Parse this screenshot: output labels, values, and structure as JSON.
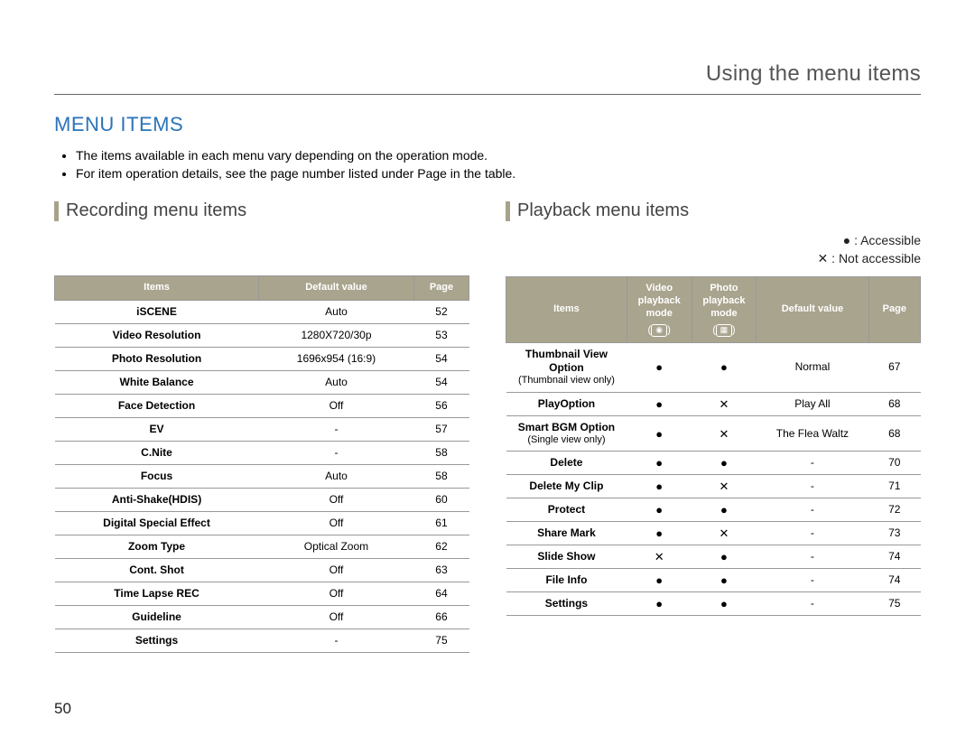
{
  "header": {
    "title": "Using the menu items"
  },
  "section": {
    "title": "MENU ITEMS"
  },
  "bullets": [
    "The items available in each menu vary depending on the operation mode.",
    "For item operation details, see the page number listed under Page in the table."
  ],
  "recording": {
    "title": "Recording menu items",
    "columns": [
      "Items",
      "Default value",
      "Page"
    ],
    "rows": [
      {
        "item": "iSCENE",
        "default": "Auto",
        "page": "52"
      },
      {
        "item": "Video Resolution",
        "default": "1280X720/30p",
        "page": "53"
      },
      {
        "item": "Photo Resolution",
        "default": "1696x954 (16:9)",
        "page": "54"
      },
      {
        "item": "White Balance",
        "default": "Auto",
        "page": "54"
      },
      {
        "item": "Face Detection",
        "default": "Off",
        "page": "56"
      },
      {
        "item": "EV",
        "default": "-",
        "page": "57"
      },
      {
        "item": "C.Nite",
        "default": "-",
        "page": "58"
      },
      {
        "item": "Focus",
        "default": "Auto",
        "page": "58"
      },
      {
        "item": "Anti-Shake(HDIS)",
        "default": "Off",
        "page": "60"
      },
      {
        "item": "Digital Special Effect",
        "default": "Off",
        "page": "61"
      },
      {
        "item": "Zoom Type",
        "default": "Optical Zoom",
        "page": "62"
      },
      {
        "item": "Cont. Shot",
        "default": "Off",
        "page": "63"
      },
      {
        "item": "Time Lapse REC",
        "default": "Off",
        "page": "64"
      },
      {
        "item": "Guideline",
        "default": "Off",
        "page": "66"
      },
      {
        "item": "Settings",
        "default": "-",
        "page": "75"
      }
    ]
  },
  "playback": {
    "title": "Playback menu items",
    "legend": {
      "accessible": "● : Accessible",
      "not_accessible": "✕ : Not accessible"
    },
    "columns": {
      "items": "Items",
      "video_mode_l1": "Video",
      "video_mode_l2": "playback",
      "video_mode_l3": "mode",
      "photo_mode_l1": "Photo",
      "photo_mode_l2": "playback",
      "photo_mode_l3": "mode",
      "default": "Default value",
      "page": "Page"
    },
    "rows": [
      {
        "item": "Thumbnail View Option",
        "note": "(Thumbnail view only)",
        "video": "●",
        "photo": "●",
        "default": "Normal",
        "page": "67"
      },
      {
        "item": "PlayOption",
        "note": "",
        "video": "●",
        "photo": "✕",
        "default": "Play All",
        "page": "68"
      },
      {
        "item": "Smart BGM Option",
        "note": "(Single view only)",
        "video": "●",
        "photo": "✕",
        "default": "The Flea Waltz",
        "page": "68"
      },
      {
        "item": "Delete",
        "note": "",
        "video": "●",
        "photo": "●",
        "default": "-",
        "page": "70"
      },
      {
        "item": "Delete My Clip",
        "note": "",
        "video": "●",
        "photo": "✕",
        "default": "-",
        "page": "71"
      },
      {
        "item": "Protect",
        "note": "",
        "video": "●",
        "photo": "●",
        "default": "-",
        "page": "72"
      },
      {
        "item": "Share Mark",
        "note": "",
        "video": "●",
        "photo": "✕",
        "default": "-",
        "page": "73"
      },
      {
        "item": "Slide Show",
        "note": "",
        "video": "✕",
        "photo": "●",
        "default": "-",
        "page": "74"
      },
      {
        "item": "File Info",
        "note": "",
        "video": "●",
        "photo": "●",
        "default": "-",
        "page": "74"
      },
      {
        "item": "Settings",
        "note": "",
        "video": "●",
        "photo": "●",
        "default": "-",
        "page": "75"
      }
    ]
  },
  "page_number": "50",
  "style": {
    "accent_color": "#2b73b8",
    "table_header_bg": "#a9a48e",
    "border_color": "#999999"
  }
}
